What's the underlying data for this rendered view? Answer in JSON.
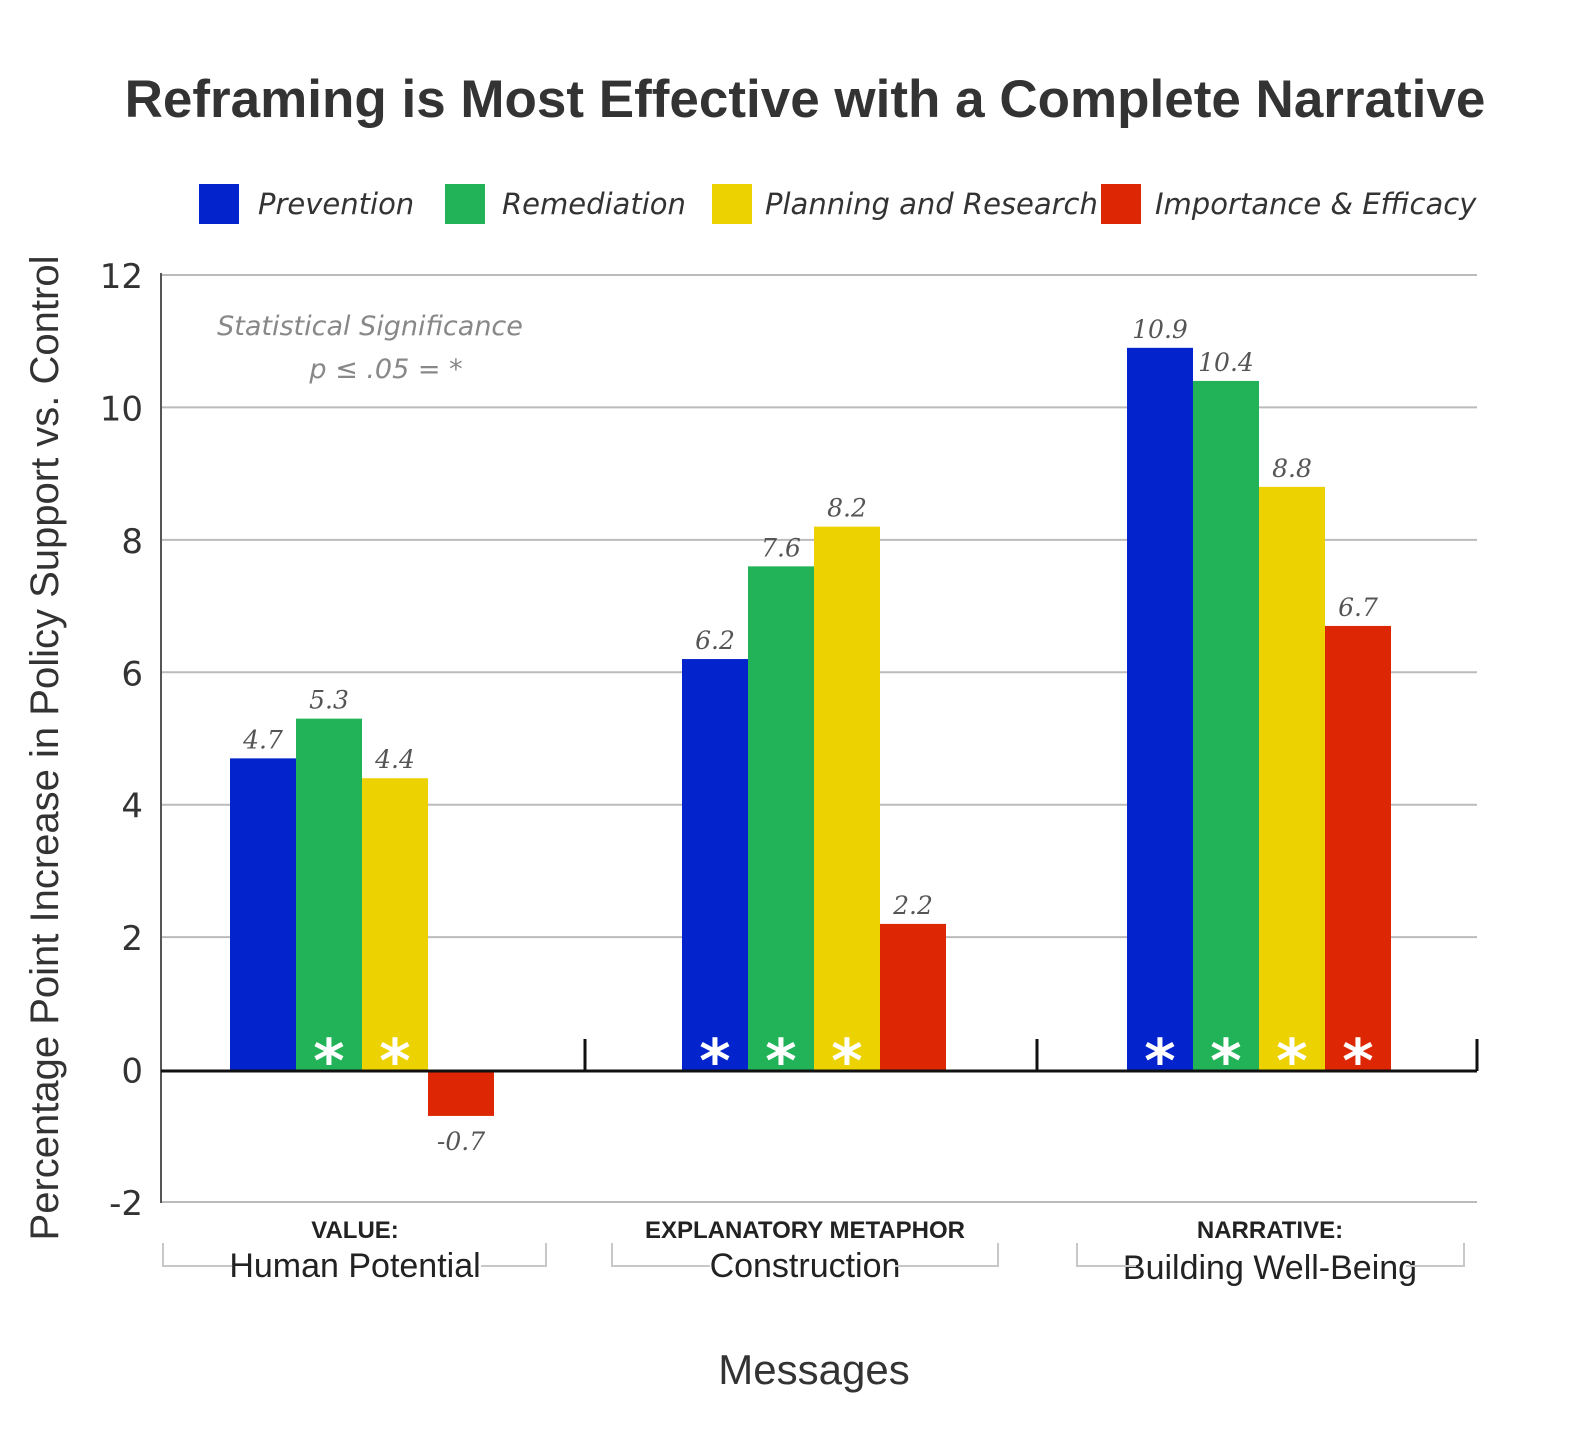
{
  "chart_data": {
    "type": "bar",
    "title": "Reframing is Most Effective with a Complete Narrative",
    "ylabel": "Percentage Point Increase in Policy Support vs. Control",
    "xlabel": "Messages",
    "ylim": [
      -2,
      12
    ],
    "yticks": [
      12,
      10,
      8,
      6,
      4,
      2,
      0,
      -2
    ],
    "grid": true,
    "legend_position": "top",
    "note": [
      "Statistical  Significance",
      "p ≤ .05 = *"
    ],
    "categories": [
      {
        "kicker": "VALUE:",
        "name": "Human Potential"
      },
      {
        "kicker": "EXPLANATORY METAPHOR",
        "name": "Construction"
      },
      {
        "kicker": "NARRATIVE:",
        "name": "Building Well-Being"
      }
    ],
    "series": [
      {
        "name": "Prevention",
        "color": "#0323cc",
        "values": [
          4.7,
          6.2,
          10.9
        ],
        "labels": [
          "4.7",
          "6.2",
          "10.9"
        ],
        "significant": [
          false,
          true,
          true
        ]
      },
      {
        "name": "Remediation",
        "color": "#22b358",
        "values": [
          5.3,
          7.6,
          10.4
        ],
        "labels": [
          "5.3",
          "7.6",
          "10.4"
        ],
        "significant": [
          true,
          true,
          true
        ]
      },
      {
        "name": "Planning and Research",
        "color": "#ecd200",
        "values": [
          4.4,
          8.2,
          8.8
        ],
        "labels": [
          "4.4",
          "8.2",
          "8.8"
        ],
        "significant": [
          true,
          true,
          true
        ]
      },
      {
        "name": "Importance & Efficacy",
        "color": "#dd2604",
        "values": [
          -0.7,
          2.2,
          6.7
        ],
        "labels": [
          "-0.7",
          "2.2",
          "6.7"
        ],
        "significant": [
          false,
          false,
          true
        ]
      }
    ],
    "significance_marker": "*"
  }
}
